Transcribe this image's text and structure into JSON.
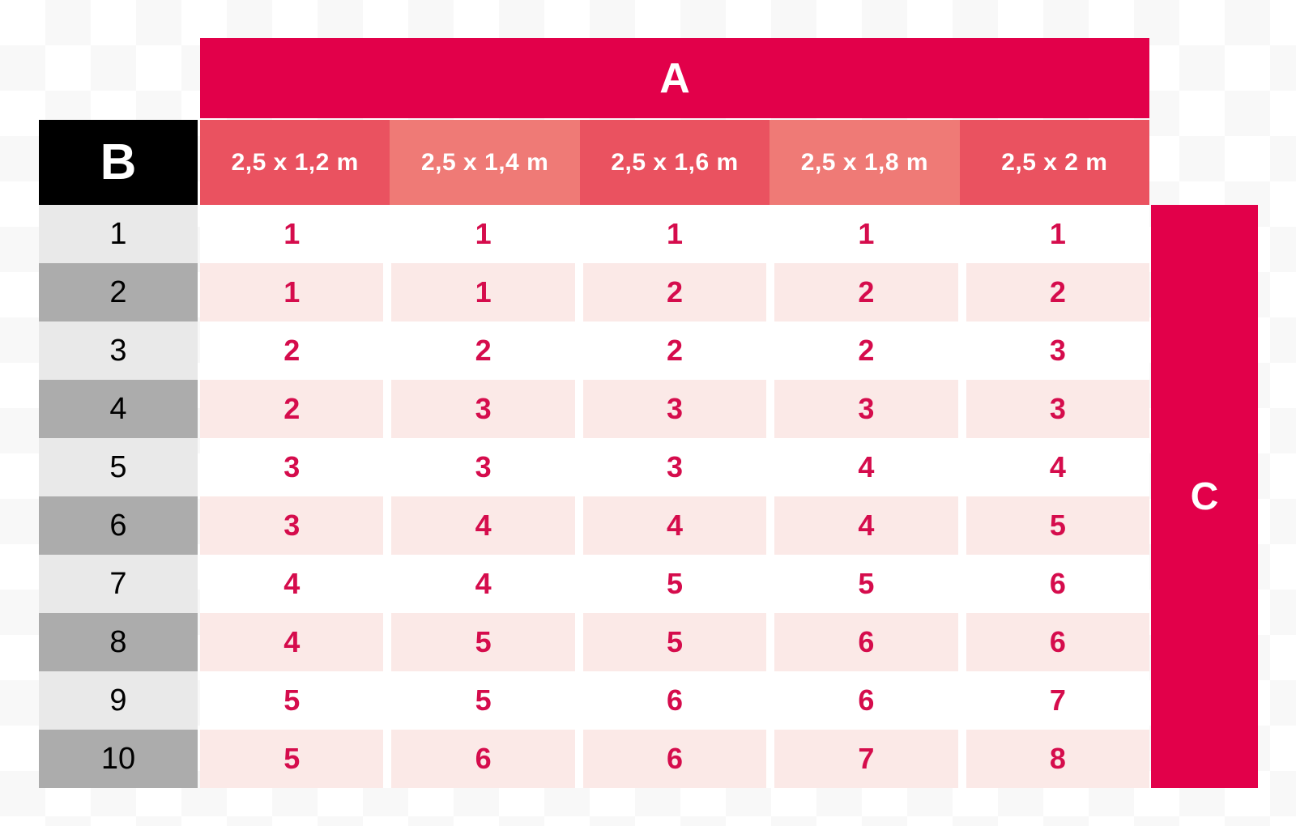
{
  "chart_data": {
    "type": "table",
    "title": "",
    "corner_labels": {
      "columns_group": "A",
      "rows_group": "B",
      "side": "C"
    },
    "columns": [
      "2,5 x 1,2 m",
      "2,5 x 1,4 m",
      "2,5 x 1,6 m",
      "2,5 x 1,8 m",
      "2,5 x 2 m"
    ],
    "row_labels": [
      "1",
      "2",
      "3",
      "4",
      "5",
      "6",
      "7",
      "8",
      "9",
      "10"
    ],
    "values": [
      [
        1,
        1,
        1,
        1,
        1
      ],
      [
        1,
        1,
        2,
        2,
        2
      ],
      [
        2,
        2,
        2,
        2,
        3
      ],
      [
        2,
        3,
        3,
        3,
        3
      ],
      [
        3,
        3,
        3,
        4,
        4
      ],
      [
        3,
        4,
        4,
        4,
        5
      ],
      [
        4,
        4,
        5,
        5,
        6
      ],
      [
        4,
        5,
        5,
        6,
        6
      ],
      [
        5,
        5,
        6,
        6,
        7
      ],
      [
        5,
        6,
        6,
        7,
        8
      ]
    ],
    "layout_hints": {
      "column_header_fill_alternating": [
        "#EA5260",
        "#EF7A76"
      ],
      "row_label_fill_alternating": [
        "#E9E9E9",
        "#ACACAC"
      ],
      "data_row_fill_alternating": [
        "#FFFFFF",
        "#FBE9E7"
      ],
      "accent_red": "#E2004A",
      "value_text_red": "#D50C4C",
      "corner_b_fill": "#000000"
    }
  }
}
